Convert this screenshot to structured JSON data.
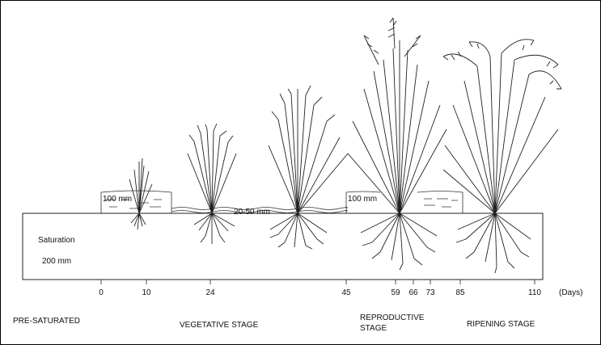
{
  "field": {
    "saturation_label": "Saturation",
    "saturation_depth": "200 mm",
    "flood_depth_1": "100 mm",
    "flood_depth_2": "100 mm",
    "shallow_water": "20-50 mm"
  },
  "timeline": {
    "days": [
      "0",
      "10",
      "24",
      "45",
      "59",
      "66",
      "73",
      "85",
      "110"
    ],
    "unit": "(Days)"
  },
  "stages": {
    "pre_saturated": "PRE-SATURATED",
    "vegetative": "VEGETATIVE STAGE",
    "reproductive_line1": "REPRODUCTIVE",
    "reproductive_line2": "STAGE",
    "ripening": "RIPENING STAGE"
  },
  "plants": [
    "seedling",
    "tillering-plant",
    "late-vegetative-plant",
    "flowering-plant",
    "ripening-plant"
  ]
}
